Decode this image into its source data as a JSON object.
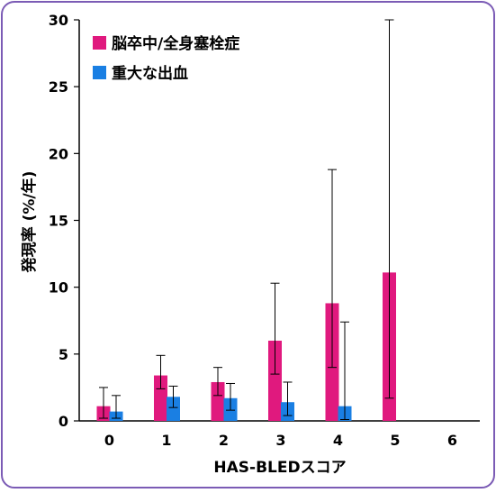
{
  "chart_data": {
    "type": "bar",
    "categories": [
      "0",
      "1",
      "2",
      "3",
      "4",
      "5",
      "6"
    ],
    "xlabel": "HAS-BLEDスコア",
    "ylabel": "発現率 (%/年)",
    "ylim": [
      0,
      30
    ],
    "yticks": [
      "0",
      "5",
      "10",
      "15",
      "20",
      "25",
      "30"
    ],
    "grid": false,
    "legend_position": "top-left",
    "series": [
      {
        "name": "脳卒中/全身塞栓症",
        "color": "#e0197e",
        "values": [
          1.1,
          3.4,
          2.9,
          6.0,
          8.8,
          11.1,
          null
        ],
        "err_low": [
          0.2,
          2.4,
          1.9,
          3.5,
          4.0,
          1.7,
          null
        ],
        "err_high": [
          2.5,
          4.9,
          4.0,
          10.3,
          18.8,
          30.0,
          null
        ]
      },
      {
        "name": "重大な出血",
        "color": "#1a7fe3",
        "values": [
          0.7,
          1.8,
          1.7,
          1.4,
          1.1,
          null,
          null
        ],
        "err_low": [
          0.2,
          1.0,
          0.8,
          0.4,
          0.1,
          null,
          null
        ],
        "err_high": [
          1.9,
          2.6,
          2.8,
          2.9,
          7.4,
          null,
          null
        ]
      }
    ]
  }
}
